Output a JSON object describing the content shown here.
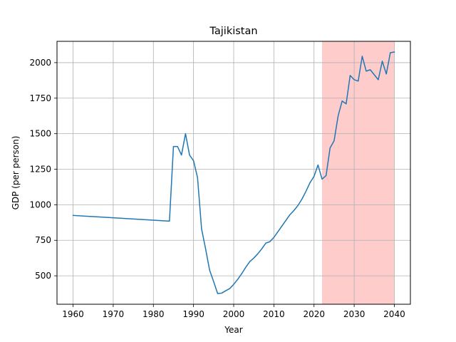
{
  "chart_data": {
    "type": "line",
    "title": "Tajikistan",
    "xlabel": "Year",
    "ylabel": "GDP (per person)",
    "xlim": [
      1956,
      2044
    ],
    "ylim": [
      300,
      2150
    ],
    "xticks": [
      1960,
      1970,
      1980,
      1990,
      2000,
      2010,
      2020,
      2030,
      2040
    ],
    "yticks": [
      500,
      750,
      1000,
      1250,
      1500,
      1750,
      2000
    ],
    "grid": true,
    "highlight": {
      "x_start": 2022,
      "x_end": 2040,
      "color": "#ffcccc"
    },
    "series": [
      {
        "color": "#1f77b4",
        "x": [
          1960,
          1984,
          1985,
          1986,
          1987,
          1988,
          1989,
          1990,
          1991,
          1992,
          1993,
          1994,
          1995,
          1996,
          1997,
          1998,
          1999,
          2000,
          2001,
          2002,
          2003,
          2004,
          2005,
          2006,
          2007,
          2008,
          2009,
          2010,
          2011,
          2012,
          2013,
          2014,
          2015,
          2016,
          2017,
          2018,
          2019,
          2020,
          2021,
          2022,
          2023,
          2024,
          2025,
          2026,
          2027,
          2028,
          2029,
          2030,
          2031,
          2032,
          2033,
          2034,
          2035,
          2036,
          2037,
          2038,
          2039,
          2040
        ],
        "y": [
          925,
          885,
          1410,
          1410,
          1350,
          1500,
          1350,
          1310,
          1190,
          830,
          690,
          540,
          460,
          375,
          378,
          395,
          410,
          440,
          475,
          515,
          560,
          600,
          625,
          655,
          690,
          730,
          740,
          770,
          810,
          850,
          890,
          930,
          960,
          995,
          1040,
          1095,
          1155,
          1200,
          1280,
          1180,
          1205,
          1400,
          1450,
          1625,
          1730,
          1710,
          1910,
          1880,
          1870,
          2045,
          1940,
          1950,
          1915,
          1880,
          2010,
          1920,
          2070,
          2075
        ]
      }
    ]
  }
}
